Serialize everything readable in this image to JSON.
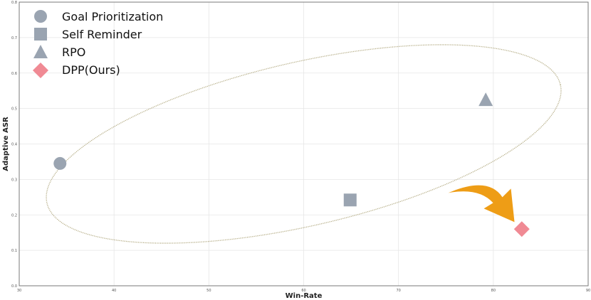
{
  "chart_data": {
    "type": "scatter",
    "xlabel": "Win-Rate",
    "ylabel": "Adaptive ASR",
    "xlim": [
      30,
      90
    ],
    "ylim": [
      0.0,
      0.8
    ],
    "xticks": [
      "30",
      "40",
      "50",
      "60",
      "70",
      "80",
      "90"
    ],
    "yticks": [
      "0.0",
      "0.1",
      "0.2",
      "0.3",
      "0.4",
      "0.5",
      "0.6",
      "0.7",
      "0.8"
    ],
    "grid": true,
    "legend_position": "top-left",
    "series": [
      {
        "name": "Goal Prioritization",
        "marker": "circle",
        "color": "#9aa4b1",
        "x": 34.3,
        "y": 0.345
      },
      {
        "name": "Self Reminder",
        "marker": "square",
        "color": "#9aa4b1",
        "x": 64.9,
        "y": 0.242
      },
      {
        "name": "RPO",
        "marker": "triangle",
        "color": "#9aa4b1",
        "x": 79.2,
        "y": 0.525
      },
      {
        "name": "DPP(Ours)",
        "marker": "diamond",
        "color": "#f08a94",
        "x": 83.0,
        "y": 0.16
      }
    ],
    "annotations": {
      "ellipse_color": "#b5ad86",
      "arrow_color": "#ee9d16"
    }
  }
}
